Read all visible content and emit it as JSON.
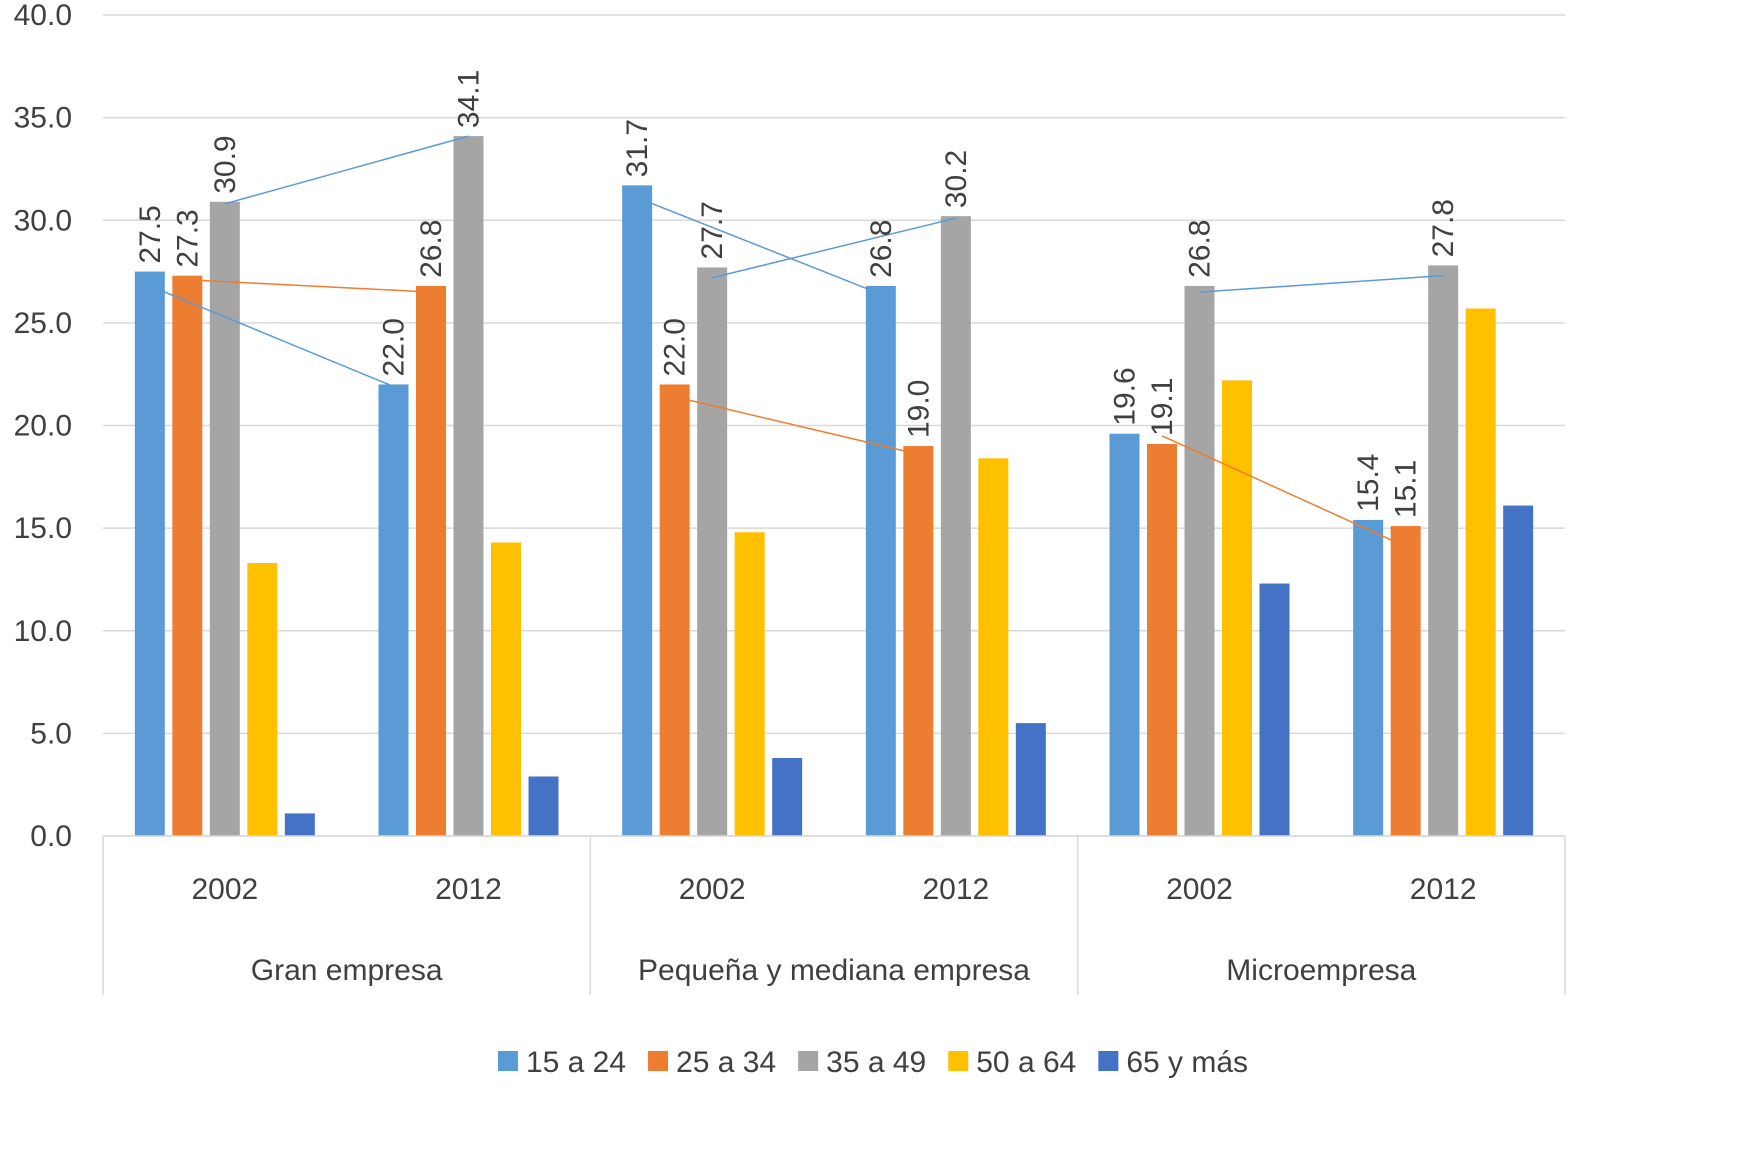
{
  "chart_data": {
    "type": "bar",
    "title": "",
    "ylim": [
      0,
      40
    ],
    "yticks": [
      "0.0",
      "5.0",
      "10.0",
      "15.0",
      "20.0",
      "25.0",
      "30.0",
      "35.0",
      "40.0"
    ],
    "grid": true,
    "legend_position": "bottom",
    "groups": [
      {
        "name": "Gran empresa",
        "categories": [
          "2002",
          "2012"
        ]
      },
      {
        "name": "Pequeña y mediana empresa",
        "categories": [
          "2002",
          "2012"
        ]
      },
      {
        "name": "Microempresa",
        "categories": [
          "2002",
          "2012"
        ]
      }
    ],
    "series": [
      {
        "name": "15 a 24",
        "color": "#5B9BD5",
        "values": [
          27.5,
          22.0,
          31.7,
          26.8,
          19.6,
          15.4
        ],
        "labels": [
          "27.5",
          "22.0",
          "31.7",
          "26.8",
          "19.6",
          "15.4"
        ]
      },
      {
        "name": "25 a 34",
        "color": "#ED7D31",
        "values": [
          27.3,
          26.8,
          22.0,
          19.0,
          19.1,
          15.1
        ],
        "labels": [
          "27.3",
          "26.8",
          "22.0",
          "19.0",
          "19.1",
          "15.1"
        ]
      },
      {
        "name": "35 a 49",
        "color": "#A5A5A5",
        "values": [
          30.9,
          34.1,
          27.7,
          30.2,
          26.8,
          27.8
        ],
        "labels": [
          "30.9",
          "34.1",
          "27.7",
          "30.2",
          "26.8",
          "27.8"
        ]
      },
      {
        "name": "50 a 64",
        "color": "#FFC000",
        "values": [
          13.3,
          14.3,
          14.8,
          18.4,
          22.2,
          25.7
        ],
        "labels": [
          "",
          "",
          "",
          "",
          "",
          ""
        ]
      },
      {
        "name": "65 y más",
        "color": "#4472C4",
        "values": [
          1.1,
          2.9,
          3.8,
          5.5,
          12.3,
          16.1
        ],
        "labels": [
          "",
          "",
          "",
          "",
          "",
          ""
        ]
      }
    ],
    "trend_lines": [
      {
        "series": "15 a 24",
        "group": "Gran empresa",
        "from": 26.8,
        "to": 21.9,
        "color": "#5B9BD5"
      },
      {
        "series": "25 a 34",
        "group": "Gran empresa",
        "from": 27.1,
        "to": 26.5,
        "color": "#ED7D31"
      },
      {
        "series": "35 a 49",
        "group": "Gran empresa",
        "from": 30.8,
        "to": 34.1,
        "color": "#5B9BD5"
      },
      {
        "series": "15 a 24",
        "group": "Pequeña y mediana empresa",
        "from": 31.1,
        "to": 26.4,
        "color": "#5B9BD5"
      },
      {
        "series": "25 a 34",
        "group": "Pequeña y mediana empresa",
        "from": 21.4,
        "to": 18.6,
        "color": "#ED7D31"
      },
      {
        "series": "35 a 49",
        "group": "Pequeña y mediana empresa",
        "from": 27.2,
        "to": 30.1,
        "color": "#5B9BD5"
      },
      {
        "series": "25 a 34",
        "group": "Microempresa",
        "from": 19.5,
        "to": 14.1,
        "color": "#ED7D31"
      },
      {
        "series": "35 a 49",
        "group": "Microempresa",
        "from": 26.5,
        "to": 27.3,
        "color": "#5B9BD5"
      }
    ]
  }
}
